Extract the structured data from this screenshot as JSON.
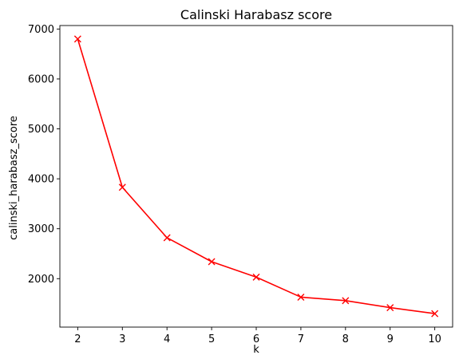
{
  "chart_data": {
    "type": "line",
    "title": "Calinski Harabasz score",
    "xlabel": "k",
    "ylabel": "calinski_harabasz_score",
    "x": [
      2,
      3,
      4,
      5,
      6,
      7,
      8,
      9,
      10
    ],
    "series": [
      {
        "values": [
          6800,
          3830,
          2820,
          2340,
          2030,
          1630,
          1560,
          1420,
          1300
        ],
        "color": "#ff0000",
        "marker": "x"
      }
    ],
    "xticks": [
      2,
      3,
      4,
      5,
      6,
      7,
      8,
      9,
      10
    ],
    "yticks": [
      2000,
      3000,
      4000,
      5000,
      6000,
      7000
    ],
    "xlim": [
      1.6,
      10.4
    ],
    "ylim": [
      1030,
      7070
    ],
    "grid": false,
    "legend": "none"
  }
}
